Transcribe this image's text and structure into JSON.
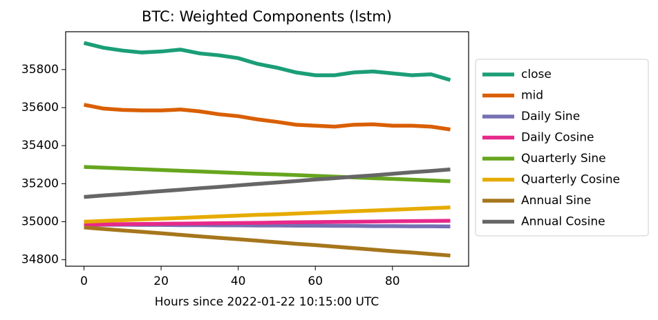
{
  "chart_data": {
    "type": "line",
    "title": "BTC: Weighted Components (lstm)",
    "x_label": "Hours since 2022-01-22 10:15:00 UTC",
    "x": [
      0,
      5,
      10,
      15,
      20,
      25,
      30,
      35,
      40,
      45,
      50,
      55,
      60,
      65,
      70,
      75,
      80,
      85,
      90,
      95
    ],
    "xlim": [
      -4.75,
      99.75
    ],
    "xticks": [
      0,
      20,
      40,
      60,
      80
    ],
    "ylim": [
      34766,
      35999
    ],
    "yticks": [
      34800,
      35000,
      35200,
      35400,
      35600,
      35800
    ],
    "legend_loc": "right",
    "series": [
      {
        "name": "close",
        "color": "#1b9e77",
        "values": [
          35940,
          35915,
          35900,
          35890,
          35895,
          35905,
          35885,
          35875,
          35860,
          35830,
          35810,
          35785,
          35770,
          35770,
          35785,
          35790,
          35780,
          35770,
          35775,
          35745
        ]
      },
      {
        "name": "mid",
        "color": "#d95f02",
        "values": [
          35615,
          35595,
          35588,
          35585,
          35585,
          35590,
          35580,
          35565,
          35555,
          35538,
          35525,
          35510,
          35505,
          35500,
          35510,
          35512,
          35505,
          35505,
          35500,
          35485
        ]
      },
      {
        "name": "Daily Sine",
        "color": "#7570b3",
        "values": [
          34985,
          34984,
          34984,
          34983,
          34983,
          34982,
          34982,
          34981,
          34981,
          34980,
          34980,
          34979,
          34979,
          34978,
          34978,
          34977,
          34977,
          34976,
          34976,
          34975
        ]
      },
      {
        "name": "Daily Cosine",
        "color": "#e7298a",
        "values": [
          34985,
          34986,
          34987,
          34988,
          34989,
          34990,
          34991,
          34992,
          34993,
          34994,
          34996,
          34997,
          34998,
          34999,
          35000,
          35001,
          35002,
          35003,
          35004,
          35005
        ]
      },
      {
        "name": "Quarterly Sine",
        "color": "#66a61e",
        "values": [
          35288,
          35284,
          35280,
          35276,
          35272,
          35268,
          35264,
          35260,
          35256,
          35252,
          35249,
          35245,
          35241,
          35237,
          35233,
          35229,
          35225,
          35221,
          35217,
          35213
        ]
      },
      {
        "name": "Quarterly Cosine",
        "color": "#e6ab02",
        "values": [
          35000,
          35004,
          35008,
          35012,
          35016,
          35020,
          35024,
          35028,
          35032,
          35036,
          35039,
          35043,
          35047,
          35051,
          35055,
          35059,
          35063,
          35067,
          35071,
          35075
        ]
      },
      {
        "name": "Annual Sine",
        "color": "#a6761d",
        "values": [
          34970,
          34962,
          34954,
          34947,
          34939,
          34931,
          34923,
          34915,
          34908,
          34900,
          34892,
          34884,
          34877,
          34869,
          34861,
          34853,
          34845,
          34838,
          34830,
          34822
        ]
      },
      {
        "name": "Annual Cosine",
        "color": "#666666",
        "values": [
          35130,
          35138,
          35145,
          35153,
          35161,
          35168,
          35176,
          35183,
          35191,
          35199,
          35206,
          35214,
          35222,
          35229,
          35237,
          35244,
          35252,
          35260,
          35267,
          35275
        ]
      }
    ]
  }
}
